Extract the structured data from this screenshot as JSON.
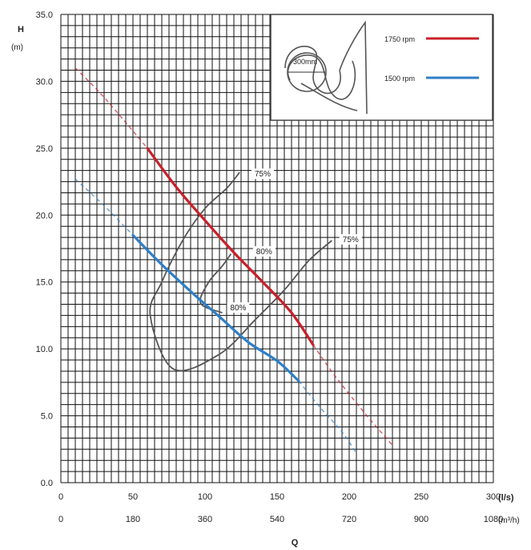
{
  "chart_data": {
    "type": "line",
    "ylabel": "H",
    "ylabel_unit": "(m)",
    "xlabel": "Q",
    "x_unit_primary": "(l/s)",
    "x_unit_secondary": "(m³/h)",
    "xlim": [
      0,
      300
    ],
    "ylim": [
      0,
      35
    ],
    "grid": true,
    "legend_position": "top-right",
    "y_ticks": [
      "0.0",
      "5.0",
      "10.0",
      "15.0",
      "20.0",
      "25.0",
      "30.0",
      "35.0"
    ],
    "y_tick_values": [
      0,
      5,
      10,
      15,
      20,
      25,
      30,
      35
    ],
    "x_ticks_primary": [
      "0",
      "50",
      "100",
      "150",
      "200",
      "250",
      "300"
    ],
    "x_tick_values_primary": [
      0,
      50,
      100,
      150,
      200,
      250,
      300
    ],
    "x_ticks_secondary": [
      "0",
      "180",
      "360",
      "540",
      "720",
      "900",
      "1080"
    ],
    "series": [
      {
        "name": "1750 rpm",
        "color": "#c8202a",
        "solid": [
          [
            60,
            25.0
          ],
          [
            80,
            22.1
          ],
          [
            100,
            19.6
          ],
          [
            120,
            17.2
          ],
          [
            140,
            15.0
          ],
          [
            160,
            12.7
          ],
          [
            175,
            10.3
          ]
        ],
        "dashed_left": [
          [
            10,
            31.0
          ],
          [
            30,
            28.8
          ],
          [
            60,
            25.0
          ]
        ],
        "dashed_right": [
          [
            175,
            10.3
          ],
          [
            190,
            8.0
          ],
          [
            210,
            5.3
          ],
          [
            230,
            2.8
          ]
        ]
      },
      {
        "name": "1500 rpm",
        "color": "#2f7fc6",
        "solid": [
          [
            50,
            18.5
          ],
          [
            70,
            16.3
          ],
          [
            90,
            14.3
          ],
          [
            110,
            12.4
          ],
          [
            130,
            10.5
          ],
          [
            150,
            9.1
          ],
          [
            165,
            7.6
          ]
        ],
        "dashed_left": [
          [
            10,
            22.7
          ],
          [
            30,
            20.7
          ],
          [
            50,
            18.5
          ]
        ],
        "dashed_right": [
          [
            165,
            7.6
          ],
          [
            180,
            5.6
          ],
          [
            195,
            3.8
          ],
          [
            205,
            2.2
          ]
        ]
      }
    ],
    "efficiency_contours": [
      {
        "label": "75%",
        "points": [
          [
            124,
            23.2
          ],
          [
            115,
            22.0
          ],
          [
            100,
            20.5
          ],
          [
            85,
            18.2
          ],
          [
            70,
            15.0
          ],
          [
            62,
            12.5
          ],
          [
            78,
            8.5
          ],
          [
            110,
            9.6
          ],
          [
            135,
            12.2
          ],
          [
            155,
            14.4
          ],
          [
            172,
            16.6
          ],
          [
            188,
            18.1
          ]
        ]
      },
      {
        "label": "80%",
        "points": [
          [
            118,
            17.1
          ],
          [
            112,
            16.2
          ],
          [
            102,
            14.9
          ],
          [
            97,
            13.4
          ],
          [
            112,
            12.7
          ]
        ]
      }
    ],
    "annotations": [
      {
        "text": "75%",
        "x": 140,
        "y": 23.0
      },
      {
        "text": "80%",
        "x": 141,
        "y": 17.2
      },
      {
        "text": "75%",
        "x": 201,
        "y": 18.1
      },
      {
        "text": "80%",
        "x": 123,
        "y": 13.0
      }
    ],
    "inset": {
      "impeller_label": "300mm"
    }
  }
}
